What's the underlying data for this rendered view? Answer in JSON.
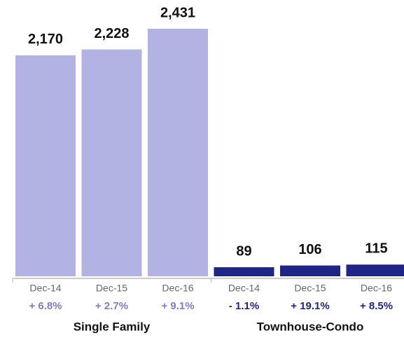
{
  "chart_data": {
    "type": "bar",
    "groups": [
      {
        "name": "Single Family",
        "color": "#b3b3e3",
        "change_color": "#7f7cc8",
        "categories": [
          "Dec-14",
          "Dec-15",
          "Dec-16"
        ],
        "values": [
          2170,
          2228,
          2431
        ],
        "value_labels": [
          "2,170",
          "2,228",
          "2,431"
        ],
        "changes": [
          "+ 6.8%",
          "+ 2.7%",
          "+ 9.1%"
        ]
      },
      {
        "name": "Townhouse-Condo",
        "color": "#1f2586",
        "change_color": "#1f2586",
        "categories": [
          "Dec-14",
          "Dec-15",
          "Dec-16"
        ],
        "values": [
          89,
          106,
          115
        ],
        "value_labels": [
          "89",
          "106",
          "115"
        ],
        "changes": [
          "- 1.1%",
          "+ 19.1%",
          "+ 8.5%"
        ]
      }
    ]
  }
}
